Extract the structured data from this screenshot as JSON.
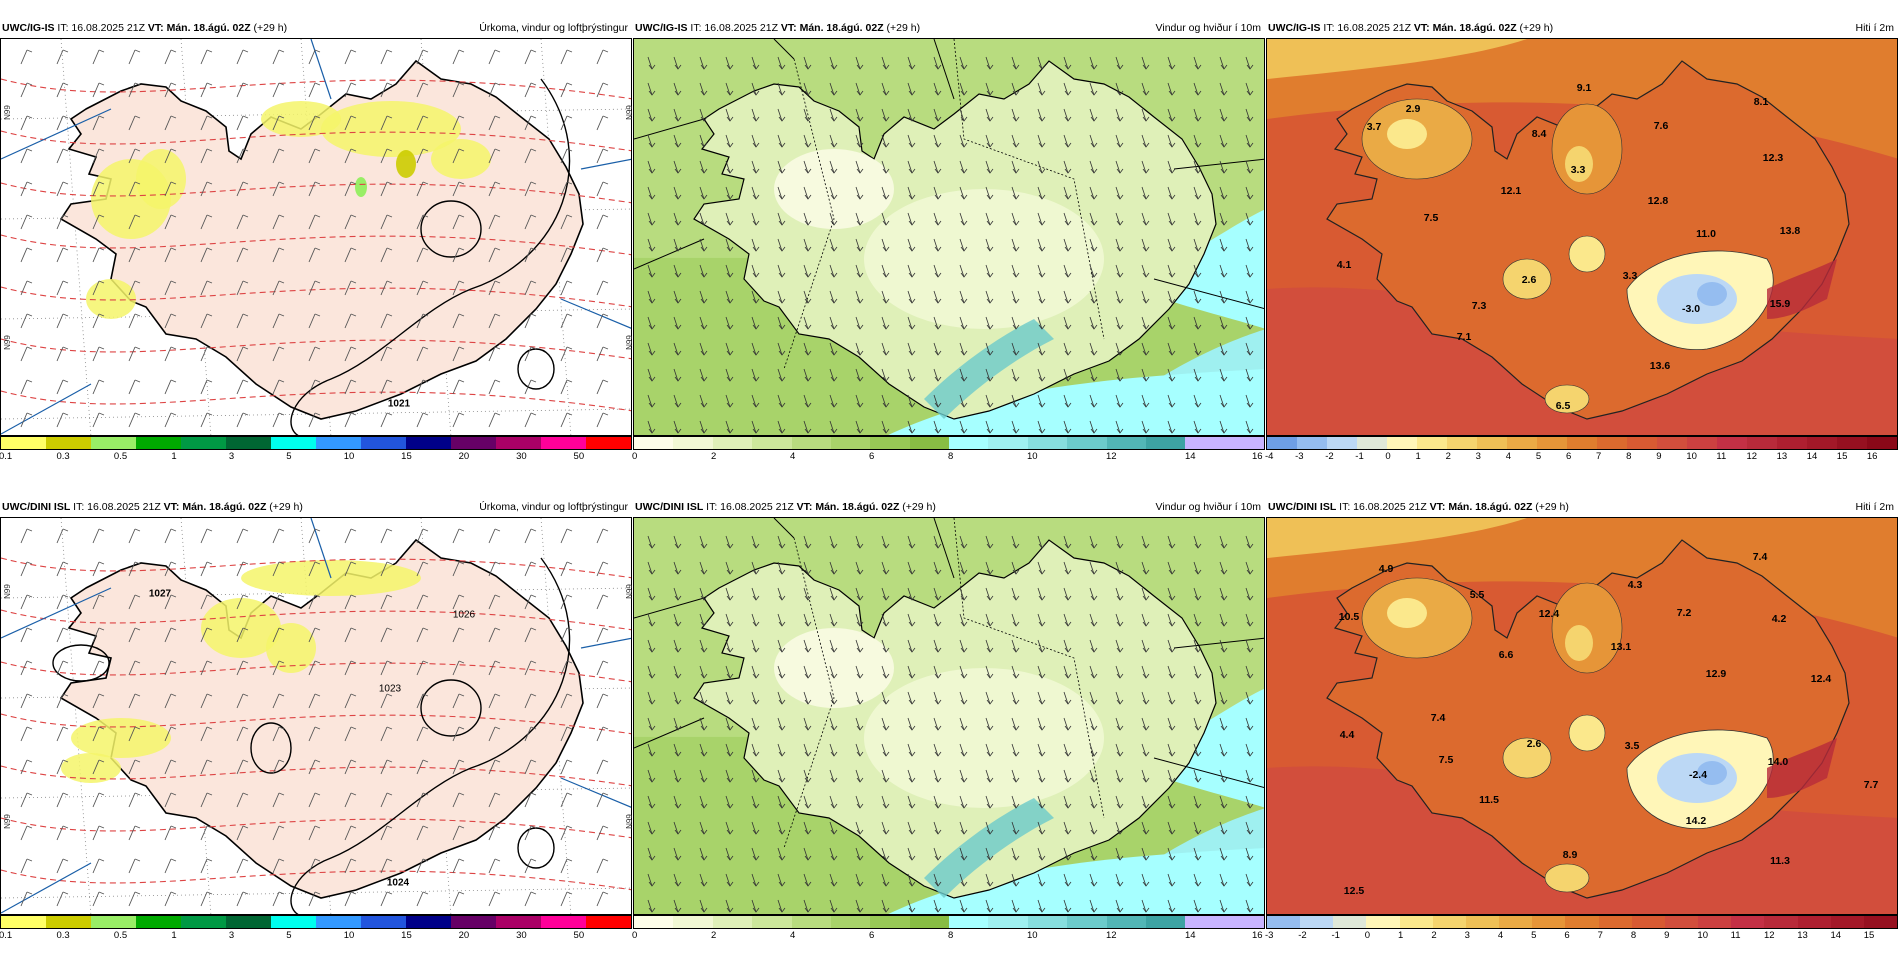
{
  "panels": [
    {
      "id": "precip_top",
      "model": "UWC/IG-IS",
      "it": "IT: 16.08.2025 21Z",
      "vt": "VT: Mán. 18.ágú. 02Z",
      "lead": "(+29 h)",
      "title": "Úrkoma, vindur og loftþrýstingur",
      "colorbar": {
        "colors": [
          "#ffff66",
          "#cccc00",
          "#99ee66",
          "#00aa00",
          "#009944",
          "#006633",
          "#00ffee",
          "#3399ff",
          "#2255dd",
          "#000088",
          "#660066",
          "#aa0066",
          "#ff0099",
          "#ff0000"
        ],
        "ticks": [
          "0.1",
          "0.3",
          "0.5",
          "1",
          "3",
          "5",
          "10",
          "15",
          "20",
          "30",
          "50"
        ]
      },
      "contour_labels": [
        "1021"
      ],
      "side_labels": [
        "N99",
        "N99",
        "N99",
        "N99"
      ]
    },
    {
      "id": "wind_top",
      "model": "UWC/IG-IS",
      "it": "IT: 16.08.2025 21Z",
      "vt": "VT: Mán. 18.ágú. 02Z",
      "lead": "(+29 h)",
      "title": "Vindur og hviður í 10m",
      "colorbar": {
        "colors": [
          "#fdfde9",
          "#f1f8d4",
          "#dff0b8",
          "#cce79b",
          "#b8dc7f",
          "#a8d36a",
          "#98c856",
          "#88bd44",
          "#a6ffff",
          "#9ff0f0",
          "#87dede",
          "#6ccbcb",
          "#52b6b6",
          "#3da3a3",
          "#c8b4ff",
          "#c8b4ff"
        ],
        "ticks": [
          "0",
          "2",
          "4",
          "6",
          "8",
          "10",
          "12",
          "14",
          "16"
        ]
      }
    },
    {
      "id": "temp_top",
      "model": "UWC/IG-IS",
      "it": "IT: 16.08.2025 21Z",
      "vt": "VT: Mán. 18.ágú. 02Z",
      "lead": "(+29 h)",
      "title": "Hiti í 2m",
      "colorbar": {
        "colors": [
          "#6e9fe6",
          "#95bdf0",
          "#bcd8f5",
          "#dfe8d8",
          "#fff6b8",
          "#fbe88c",
          "#f5d46e",
          "#efc056",
          "#eaaa45",
          "#e69538",
          "#e07d2e",
          "#dc6a2e",
          "#d85a32",
          "#d24e3c",
          "#cc4040",
          "#c43045",
          "#b82a3a",
          "#ae1f30",
          "#a31828",
          "#961020",
          "#8a0818"
        ],
        "ticks": [
          "-4",
          "-3",
          "-2",
          "-1",
          "0",
          "1",
          "2",
          "3",
          "4",
          "5",
          "6",
          "7",
          "8",
          "9",
          "10",
          "11",
          "12",
          "13",
          "14",
          "15",
          "16"
        ]
      },
      "values": [
        "9.1",
        "8.1",
        "2.9",
        "3.7",
        "7.6",
        "8.4",
        "3.3",
        "12.3",
        "12.1",
        "12.8",
        "7.5",
        "11.0",
        "13.8",
        "4.1",
        "2.6",
        "3.3",
        "7.3",
        "-3.0",
        "15.9",
        "7.1",
        "13.6",
        "6.5"
      ]
    },
    {
      "id": "precip_bottom",
      "model": "UWC/DINI ISL",
      "it": "IT: 16.08.2025 21Z",
      "vt": "VT: Mán. 18.ágú. 02Z",
      "lead": "(+29 h)",
      "title": "Úrkoma, vindur og loftþrýstingur",
      "colorbar": {
        "colors": [
          "#ffff66",
          "#cccc00",
          "#99ee66",
          "#00aa00",
          "#009944",
          "#006633",
          "#00ffee",
          "#3399ff",
          "#2255dd",
          "#000088",
          "#660066",
          "#aa0066",
          "#ff0099",
          "#ff0000"
        ],
        "ticks": [
          "0.1",
          "0.3",
          "0.5",
          "1",
          "3",
          "5",
          "10",
          "15",
          "20",
          "30",
          "50"
        ]
      },
      "contour_labels": [
        "1027",
        "1026",
        "1023",
        "1024"
      ],
      "side_labels": [
        "N99",
        "N99",
        "N99",
        "N99"
      ]
    },
    {
      "id": "wind_bottom",
      "model": "UWC/DINI ISL",
      "it": "IT: 16.08.2025 21Z",
      "vt": "VT: Mán. 18.ágú. 02Z",
      "lead": "(+29 h)",
      "title": "Vindur og hviður í 10m",
      "colorbar": {
        "colors": [
          "#fdfde9",
          "#f1f8d4",
          "#dff0b8",
          "#cce79b",
          "#b8dc7f",
          "#a8d36a",
          "#98c856",
          "#88bd44",
          "#a6ffff",
          "#9ff0f0",
          "#87dede",
          "#6ccbcb",
          "#52b6b6",
          "#3da3a3",
          "#c8b4ff",
          "#c8b4ff"
        ],
        "ticks": [
          "0",
          "2",
          "4",
          "6",
          "8",
          "10",
          "12",
          "14",
          "16"
        ]
      }
    },
    {
      "id": "temp_bottom",
      "model": "UWC/DINI ISL",
      "it": "IT: 16.08.2025 21Z",
      "vt": "VT: Mán. 18.ágú. 02Z",
      "lead": "(+29 h)",
      "title": "Hiti í 2m",
      "colorbar": {
        "colors": [
          "#95bdf0",
          "#bcd8f5",
          "#dfe8d8",
          "#fff6b8",
          "#fbe88c",
          "#f5d46e",
          "#efc056",
          "#eaaa45",
          "#e69538",
          "#e07d2e",
          "#dc6a2e",
          "#d85a32",
          "#d24e3c",
          "#cc4040",
          "#c43045",
          "#b82a3a",
          "#ae1f30",
          "#a31828",
          "#961020"
        ],
        "ticks": [
          "-3",
          "-2",
          "-1",
          "0",
          "1",
          "2",
          "3",
          "4",
          "5",
          "6",
          "7",
          "8",
          "9",
          "10",
          "11",
          "12",
          "13",
          "14",
          "15"
        ]
      },
      "values": [
        "7.4",
        "4.9",
        "5.5",
        "4.3",
        "10.5",
        "12.4",
        "7.2",
        "4.2",
        "13.1",
        "6.6",
        "12.9",
        "12.4",
        "7.4",
        "4.4",
        "2.6",
        "3.5",
        "7.5",
        "-2.4",
        "14.0",
        "7.7",
        "11.5",
        "14.2",
        "8.9",
        "11.3",
        "12.5"
      ]
    }
  ]
}
